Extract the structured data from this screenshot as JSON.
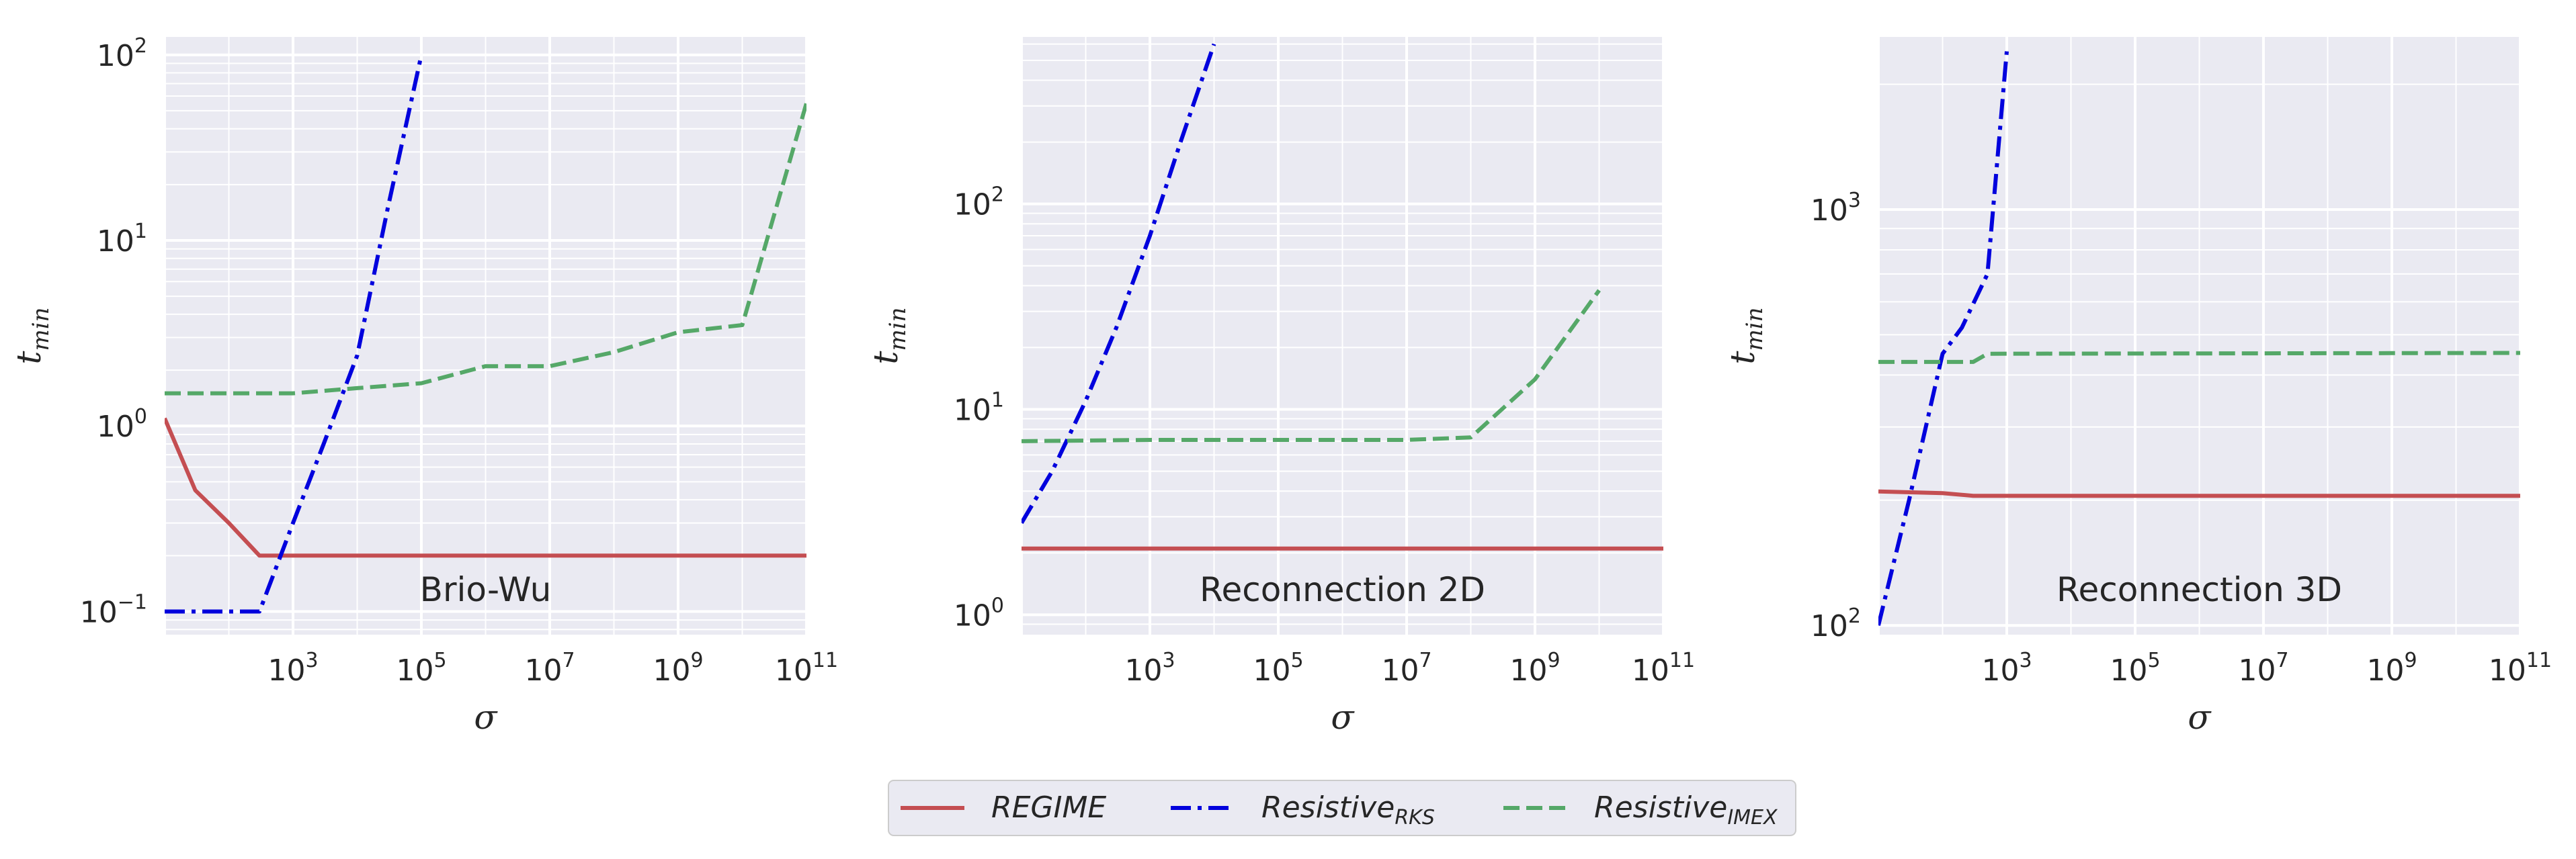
{
  "colors": {
    "plot_bg": "#EAEAF2",
    "grid": "#FFFFFF",
    "text": "#262626",
    "regime": "#C44E52",
    "rks": "#0000DD",
    "imex": "#55A868"
  },
  "legend": {
    "entries": [
      {
        "series": "regime",
        "label": "REGIME",
        "sub": "",
        "dash": "solid"
      },
      {
        "series": "rks",
        "label": "Resistive",
        "sub": "RKS",
        "dash": "dashdot"
      },
      {
        "series": "imex",
        "label": "Resistive",
        "sub": "IMEX",
        "dash": "dashed"
      }
    ]
  },
  "chart_data": [
    {
      "type": "line",
      "title": "",
      "annotation": "Brio-Wu",
      "xlabel": "σ",
      "ylabel": "t",
      "ylabel_sub": "min",
      "xscale": "log",
      "yscale": "log",
      "xlim": [
        10,
        100000000000.0
      ],
      "ylim": [
        0.075,
        125
      ],
      "grid": true,
      "xticks": [
        {
          "base": "10",
          "exp": "3",
          "value": 1000
        },
        {
          "base": "10",
          "exp": "5",
          "value": 100000
        },
        {
          "base": "10",
          "exp": "7",
          "value": 10000000
        },
        {
          "base": "10",
          "exp": "9",
          "value": 1000000000
        },
        {
          "base": "10",
          "exp": "11",
          "value": 100000000000
        }
      ],
      "yticks": [
        {
          "base": "10",
          "exp": "−1",
          "value": 0.1
        },
        {
          "base": "10",
          "exp": "0",
          "value": 1
        },
        {
          "base": "10",
          "exp": "1",
          "value": 10
        },
        {
          "base": "10",
          "exp": "2",
          "value": 100
        }
      ],
      "series": [
        {
          "key": "regime",
          "x": [
            10,
            30,
            100,
            300,
            1000,
            100000,
            10000000,
            1000000000,
            100000000000
          ],
          "y": [
            1.1,
            0.45,
            0.3,
            0.2,
            0.2,
            0.2,
            0.2,
            0.2,
            0.2
          ]
        },
        {
          "key": "rks",
          "x": [
            10,
            100,
            300,
            1000,
            3000,
            10000,
            30000,
            100000
          ],
          "y": [
            0.1,
            0.1,
            0.1,
            0.3,
            0.8,
            2.4,
            15,
            100
          ]
        },
        {
          "key": "imex",
          "x": [
            10,
            1000,
            10000,
            100000,
            1000000,
            10000000,
            100000000,
            1000000000,
            10000000000,
            100000000000
          ],
          "y": [
            1.5,
            1.5,
            1.6,
            1.7,
            2.1,
            2.1,
            2.5,
            3.2,
            3.5,
            55
          ]
        }
      ]
    },
    {
      "type": "line",
      "title": "",
      "annotation": "Reconnection 2D",
      "xlabel": "σ",
      "ylabel": "t",
      "ylabel_sub": "min",
      "xscale": "log",
      "yscale": "log",
      "xlim": [
        10,
        100000000000.0
      ],
      "ylim": [
        0.8,
        650
      ],
      "grid": true,
      "xticks": [
        {
          "base": "10",
          "exp": "3",
          "value": 1000
        },
        {
          "base": "10",
          "exp": "5",
          "value": 100000
        },
        {
          "base": "10",
          "exp": "7",
          "value": 10000000
        },
        {
          "base": "10",
          "exp": "9",
          "value": 1000000000
        },
        {
          "base": "10",
          "exp": "11",
          "value": 100000000000
        }
      ],
      "yticks": [
        {
          "base": "10",
          "exp": "0",
          "value": 1
        },
        {
          "base": "10",
          "exp": "1",
          "value": 10
        },
        {
          "base": "10",
          "exp": "2",
          "value": 100
        }
      ],
      "series": [
        {
          "key": "regime",
          "x": [
            10,
            100000000000
          ],
          "y": [
            2.1,
            2.1
          ]
        },
        {
          "key": "rks",
          "x": [
            10,
            30,
            100,
            300,
            1000,
            3000,
            10000
          ],
          "y": [
            2.8,
            5,
            11,
            25,
            70,
            200,
            600
          ]
        },
        {
          "key": "imex",
          "x": [
            10,
            1000,
            10000000,
            100000000,
            1000000000,
            10000000000
          ],
          "y": [
            7,
            7.1,
            7.1,
            7.3,
            14,
            38
          ]
        }
      ]
    },
    {
      "type": "line",
      "title": "",
      "annotation": "Reconnection 3D",
      "xlabel": "σ",
      "ylabel": "t",
      "ylabel_sub": "min",
      "xscale": "log",
      "yscale": "log",
      "xlim": [
        10,
        100000000000.0
      ],
      "ylim": [
        95,
        2600
      ],
      "grid": true,
      "xticks": [
        {
          "base": "10",
          "exp": "3",
          "value": 1000
        },
        {
          "base": "10",
          "exp": "5",
          "value": 100000
        },
        {
          "base": "10",
          "exp": "7",
          "value": 10000000
        },
        {
          "base": "10",
          "exp": "9",
          "value": 1000000000
        },
        {
          "base": "10",
          "exp": "11",
          "value": 100000000000
        }
      ],
      "yticks": [
        {
          "base": "10",
          "exp": "2",
          "value": 100
        },
        {
          "base": "10",
          "exp": "3",
          "value": 1000
        }
      ],
      "series": [
        {
          "key": "regime",
          "x": [
            10,
            100,
            300,
            100000000000
          ],
          "y": [
            210,
            208,
            205,
            205
          ]
        },
        {
          "key": "rks",
          "x": [
            10,
            30,
            100,
            200,
            500,
            1000
          ],
          "y": [
            100,
            200,
            450,
            520,
            700,
            2400
          ]
        },
        {
          "key": "imex",
          "x": [
            10,
            300,
            500,
            100000000000
          ],
          "y": [
            430,
            430,
            450,
            452
          ]
        }
      ]
    }
  ]
}
